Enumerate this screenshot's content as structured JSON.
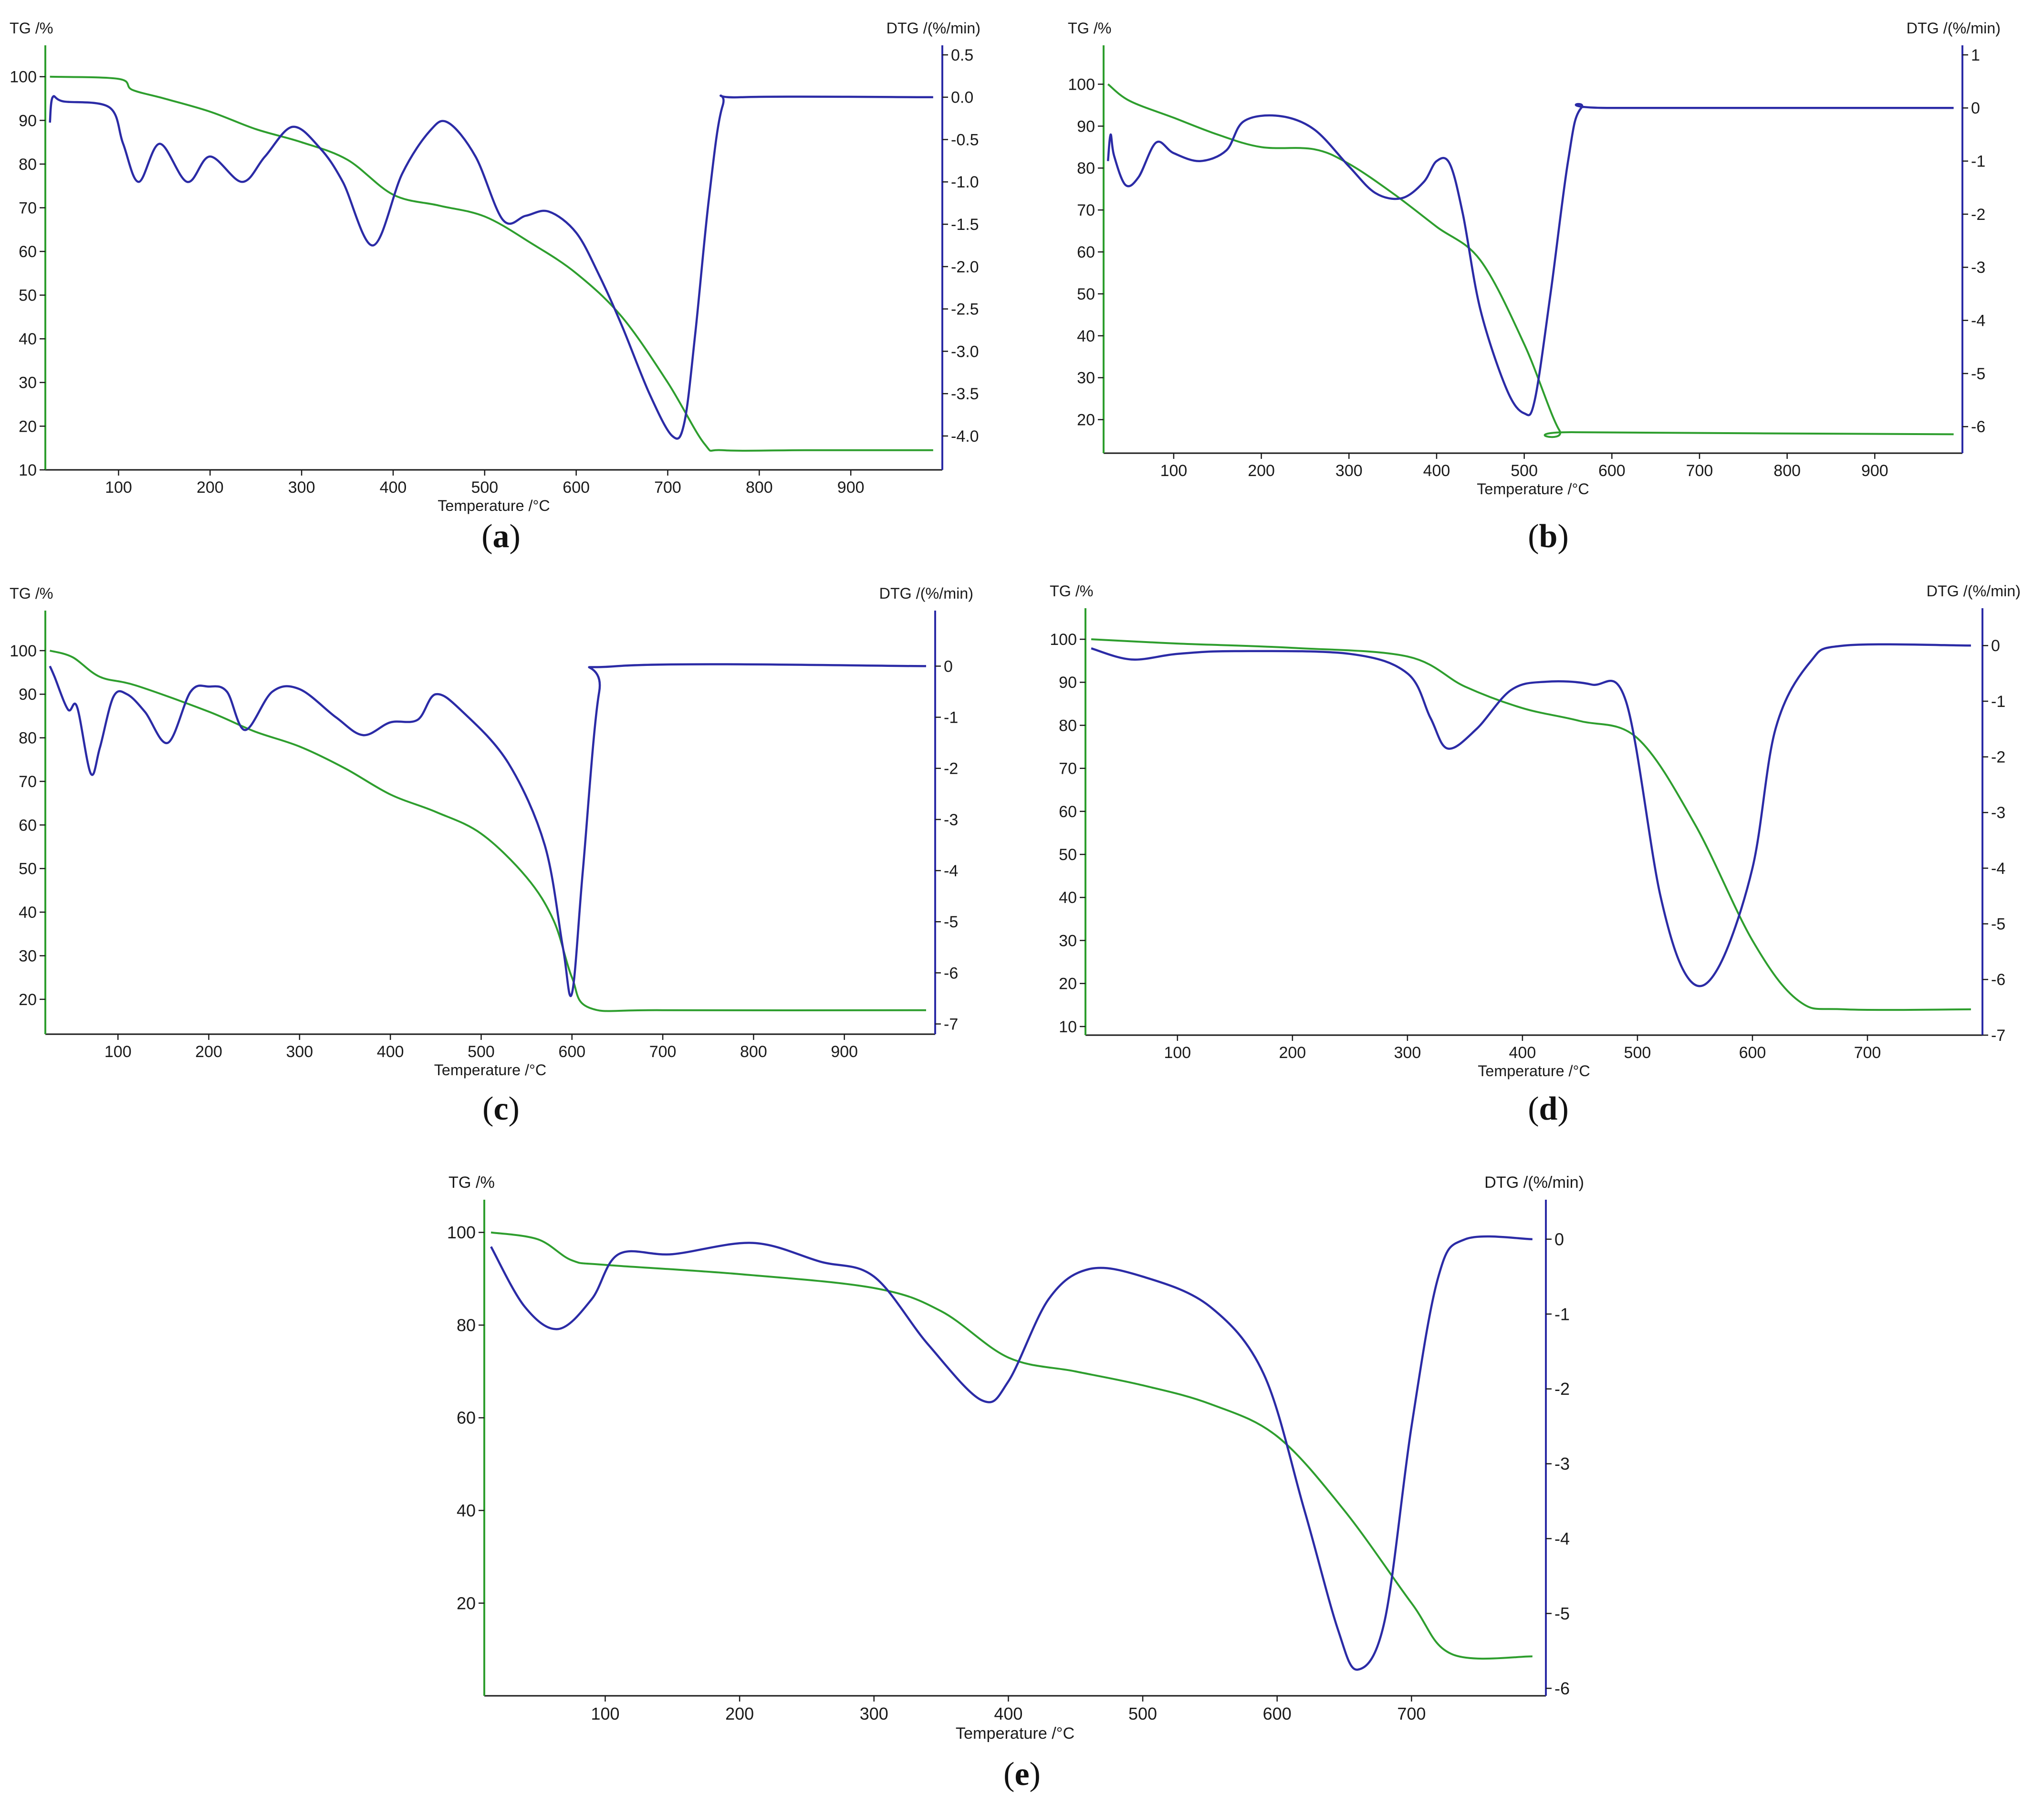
{
  "chart_data": [
    {
      "type": "line",
      "panel": "(a)",
      "tg_label": "TG /%",
      "dtg_label": "DTG /(%/min)",
      "xlabel": "Temperature /°C",
      "xlim": [
        20,
        1000
      ],
      "tg_ylim": [
        10,
        105
      ],
      "dtg_ylim": [
        -4.4,
        0.5
      ],
      "x_ticks": [
        100,
        200,
        300,
        400,
        500,
        600,
        700,
        800,
        900
      ],
      "tg_ticks": [
        10,
        20,
        30,
        40,
        50,
        60,
        70,
        80,
        90,
        100
      ],
      "dtg_ticks": [
        "0.5",
        "0.0",
        "-0.5",
        "-1.0",
        "-1.5",
        "-2.0",
        "-2.5",
        "-3.0",
        "-3.5",
        "-4.0"
      ],
      "series": [
        {
          "name": "TG",
          "color": "#2e9e2e",
          "axis": "tg",
          "points": [
            [
              25,
              100
            ],
            [
              100,
              99.5
            ],
            [
              115,
              97
            ],
            [
              150,
              95
            ],
            [
              200,
              92
            ],
            [
              250,
              88
            ],
            [
              300,
              85
            ],
            [
              350,
              81
            ],
            [
              400,
              73
            ],
            [
              450,
              70.5
            ],
            [
              500,
              68
            ],
            [
              550,
              62
            ],
            [
              600,
              55
            ],
            [
              650,
              45
            ],
            [
              700,
              30
            ],
            [
              740,
              16
            ],
            [
              760,
              14.5
            ],
            [
              850,
              14.5
            ],
            [
              990,
              14.5
            ]
          ]
        },
        {
          "name": "DTG",
          "color": "#2b2ba6",
          "axis": "dtg",
          "points": [
            [
              25,
              -0.3
            ],
            [
              28,
              0.0
            ],
            [
              40,
              -0.05
            ],
            [
              90,
              -0.12
            ],
            [
              105,
              -0.55
            ],
            [
              122,
              -1.0
            ],
            [
              145,
              -0.55
            ],
            [
              175,
              -1.0
            ],
            [
              200,
              -0.7
            ],
            [
              235,
              -1.0
            ],
            [
              260,
              -0.7
            ],
            [
              290,
              -0.35
            ],
            [
              320,
              -0.6
            ],
            [
              345,
              -1.0
            ],
            [
              378,
              -1.75
            ],
            [
              410,
              -0.9
            ],
            [
              440,
              -0.4
            ],
            [
              460,
              -0.3
            ],
            [
              490,
              -0.7
            ],
            [
              520,
              -1.45
            ],
            [
              545,
              -1.4
            ],
            [
              570,
              -1.35
            ],
            [
              600,
              -1.6
            ],
            [
              625,
              -2.1
            ],
            [
              650,
              -2.7
            ],
            [
              680,
              -3.5
            ],
            [
              705,
              -4.0
            ],
            [
              718,
              -3.85
            ],
            [
              730,
              -2.8
            ],
            [
              745,
              -1.2
            ],
            [
              760,
              -0.1
            ],
            [
              780,
              0.0
            ],
            [
              990,
              0.0
            ]
          ]
        }
      ]
    },
    {
      "type": "line",
      "panel": "(b)",
      "tg_label": "TG /%",
      "dtg_label": "DTG /(%/min)",
      "xlabel": "Temperature /°C",
      "xlim": [
        20,
        1000
      ],
      "tg_ylim": [
        12,
        107
      ],
      "dtg_ylim": [
        -6.5,
        1
      ],
      "x_ticks": [
        100,
        200,
        300,
        400,
        500,
        600,
        700,
        800,
        900
      ],
      "tg_ticks": [
        20,
        30,
        40,
        50,
        60,
        70,
        80,
        90,
        100
      ],
      "dtg_ticks": [
        "1",
        "0",
        "-1",
        "-2",
        "-3",
        "-4",
        "-5",
        "-6"
      ],
      "series": [
        {
          "name": "TG",
          "color": "#2e9e2e",
          "axis": "tg",
          "points": [
            [
              25,
              100
            ],
            [
              50,
              96
            ],
            [
              100,
              92
            ],
            [
              150,
              88
            ],
            [
              200,
              85
            ],
            [
              260,
              84.5
            ],
            [
              300,
              81
            ],
            [
              350,
              74
            ],
            [
              400,
              66
            ],
            [
              450,
              58
            ],
            [
              500,
              38
            ],
            [
              540,
              17.5
            ],
            [
              560,
              17
            ],
            [
              990,
              16.5
            ]
          ]
        },
        {
          "name": "DTG",
          "color": "#2b2ba6",
          "axis": "dtg",
          "points": [
            [
              25,
              -1
            ],
            [
              28,
              -0.5
            ],
            [
              32,
              -0.9
            ],
            [
              45,
              -1.45
            ],
            [
              60,
              -1.3
            ],
            [
              80,
              -0.65
            ],
            [
              100,
              -0.85
            ],
            [
              130,
              -1.0
            ],
            [
              160,
              -0.8
            ],
            [
              180,
              -0.25
            ],
            [
              220,
              -0.15
            ],
            [
              260,
              -0.4
            ],
            [
              300,
              -1.1
            ],
            [
              330,
              -1.6
            ],
            [
              360,
              -1.7
            ],
            [
              385,
              -1.4
            ],
            [
              400,
              -1.0
            ],
            [
              415,
              -1.05
            ],
            [
              430,
              -2.0
            ],
            [
              450,
              -3.8
            ],
            [
              480,
              -5.3
            ],
            [
              500,
              -5.75
            ],
            [
              512,
              -5.5
            ],
            [
              530,
              -3.5
            ],
            [
              550,
              -1.0
            ],
            [
              565,
              0.0
            ],
            [
              600,
              0.0
            ],
            [
              990,
              0.0
            ]
          ]
        }
      ]
    },
    {
      "type": "line",
      "panel": "(c)",
      "tg_label": "TG /%",
      "dtg_label": "DTG /(%/min)",
      "xlabel": "Temperature /°C",
      "xlim": [
        20,
        1000
      ],
      "tg_ylim": [
        12,
        107
      ],
      "dtg_ylim": [
        -7.2,
        0.9
      ],
      "x_ticks": [
        100,
        200,
        300,
        400,
        500,
        600,
        700,
        800,
        900
      ],
      "tg_ticks": [
        20,
        30,
        40,
        50,
        60,
        70,
        80,
        90,
        100
      ],
      "dtg_ticks": [
        "0",
        "-1",
        "-2",
        "-3",
        "-4",
        "-5",
        "-6",
        "-7"
      ],
      "series": [
        {
          "name": "TG",
          "color": "#2e9e2e",
          "axis": "tg",
          "points": [
            [
              25,
              100
            ],
            [
              50,
              98.5
            ],
            [
              80,
              94
            ],
            [
              120,
              92
            ],
            [
              200,
              86
            ],
            [
              250,
              81.5
            ],
            [
              300,
              78
            ],
            [
              350,
              73
            ],
            [
              400,
              67
            ],
            [
              450,
              63
            ],
            [
              500,
              58
            ],
            [
              550,
              48
            ],
            [
              580,
              38
            ],
            [
              600,
              25
            ],
            [
              620,
              18
            ],
            [
              700,
              17.5
            ],
            [
              990,
              17.5
            ]
          ]
        },
        {
          "name": "DTG",
          "color": "#2b2ba6",
          "axis": "dtg",
          "points": [
            [
              25,
              0.0
            ],
            [
              30,
              -0.2
            ],
            [
              45,
              -0.85
            ],
            [
              55,
              -0.8
            ],
            [
              70,
              -2.1
            ],
            [
              80,
              -1.6
            ],
            [
              95,
              -0.6
            ],
            [
              110,
              -0.55
            ],
            [
              130,
              -0.9
            ],
            [
              155,
              -1.5
            ],
            [
              180,
              -0.5
            ],
            [
              200,
              -0.4
            ],
            [
              220,
              -0.5
            ],
            [
              240,
              -1.25
            ],
            [
              270,
              -0.5
            ],
            [
              300,
              -0.45
            ],
            [
              340,
              -1.0
            ],
            [
              370,
              -1.35
            ],
            [
              400,
              -1.1
            ],
            [
              430,
              -1.05
            ],
            [
              450,
              -0.55
            ],
            [
              480,
              -0.9
            ],
            [
              530,
              -1.9
            ],
            [
              570,
              -3.5
            ],
            [
              590,
              -5.5
            ],
            [
              600,
              -6.4
            ],
            [
              612,
              -4.0
            ],
            [
              630,
              -0.5
            ],
            [
              650,
              0.0
            ],
            [
              990,
              0.0
            ]
          ]
        }
      ]
    },
    {
      "type": "line",
      "panel": "(d)",
      "tg_label": "TG /%",
      "dtg_label": "DTG /(%/min)",
      "xlabel": "Temperature /°C",
      "xlim": [
        20,
        800
      ],
      "tg_ylim": [
        8,
        105
      ],
      "dtg_ylim": [
        -7,
        0.5
      ],
      "x_ticks": [
        100,
        200,
        300,
        400,
        500,
        600,
        700
      ],
      "tg_ticks": [
        10,
        20,
        30,
        40,
        50,
        60,
        70,
        80,
        90,
        100
      ],
      "dtg_ticks": [
        "0",
        "-1",
        "-2",
        "-3",
        "-4",
        "-5",
        "-6",
        "-7"
      ],
      "series": [
        {
          "name": "TG",
          "color": "#2e9e2e",
          "axis": "tg",
          "points": [
            [
              25,
              100
            ],
            [
              100,
              99
            ],
            [
              200,
              98
            ],
            [
              300,
              96
            ],
            [
              350,
              89
            ],
            [
              400,
              84
            ],
            [
              450,
              81
            ],
            [
              500,
              77
            ],
            [
              550,
              57
            ],
            [
              600,
              30
            ],
            [
              640,
              16
            ],
            [
              680,
              14
            ],
            [
              790,
              14
            ]
          ]
        },
        {
          "name": "DTG",
          "color": "#2b2ba6",
          "axis": "dtg",
          "points": [
            [
              25,
              -0.05
            ],
            [
              60,
              -0.25
            ],
            [
              100,
              -0.15
            ],
            [
              150,
              -0.1
            ],
            [
              250,
              -0.15
            ],
            [
              300,
              -0.5
            ],
            [
              320,
              -1.3
            ],
            [
              335,
              -1.85
            ],
            [
              360,
              -1.5
            ],
            [
              390,
              -0.8
            ],
            [
              420,
              -0.65
            ],
            [
              460,
              -0.7
            ],
            [
              490,
              -1.0
            ],
            [
              520,
              -4.5
            ],
            [
              545,
              -6.0
            ],
            [
              570,
              -5.8
            ],
            [
              600,
              -4.0
            ],
            [
              620,
              -1.5
            ],
            [
              650,
              -0.3
            ],
            [
              680,
              0.0
            ],
            [
              790,
              0.0
            ]
          ]
        }
      ]
    },
    {
      "type": "line",
      "panel": "(e)",
      "tg_label": "TG /%",
      "dtg_label": "DTG /(%/min)",
      "xlabel": "Temperature /°C",
      "xlim": [
        10,
        800
      ],
      "tg_ylim": [
        0,
        105
      ],
      "dtg_ylim": [
        -6.1,
        0.4
      ],
      "x_ticks": [
        100,
        200,
        300,
        400,
        500,
        600,
        700
      ],
      "tg_ticks": [
        20,
        40,
        60,
        80,
        100
      ],
      "dtg_ticks": [
        "0",
        "-1",
        "-2",
        "-3",
        "-4",
        "-5",
        "-6"
      ],
      "series": [
        {
          "name": "TG",
          "color": "#2e9e2e",
          "axis": "tg",
          "points": [
            [
              15,
              100
            ],
            [
              50,
              98.5
            ],
            [
              75,
              94
            ],
            [
              100,
              93
            ],
            [
              200,
              91
            ],
            [
              300,
              88
            ],
            [
              350,
              83
            ],
            [
              400,
              73
            ],
            [
              450,
              70
            ],
            [
              500,
              67
            ],
            [
              550,
              63
            ],
            [
              600,
              56
            ],
            [
              650,
              40
            ],
            [
              700,
              20
            ],
            [
              730,
              9
            ],
            [
              790,
              8.5
            ]
          ]
        },
        {
          "name": "DTG",
          "color": "#2b2ba6",
          "axis": "dtg",
          "points": [
            [
              15,
              -0.1
            ],
            [
              40,
              -0.9
            ],
            [
              65,
              -1.2
            ],
            [
              90,
              -0.8
            ],
            [
              110,
              -0.2
            ],
            [
              150,
              -0.2
            ],
            [
              210,
              -0.05
            ],
            [
              260,
              -0.3
            ],
            [
              300,
              -0.5
            ],
            [
              340,
              -1.4
            ],
            [
              380,
              -2.15
            ],
            [
              400,
              -1.9
            ],
            [
              430,
              -0.8
            ],
            [
              460,
              -0.4
            ],
            [
              500,
              -0.5
            ],
            [
              550,
              -0.9
            ],
            [
              590,
              -1.8
            ],
            [
              620,
              -3.6
            ],
            [
              645,
              -5.2
            ],
            [
              660,
              -5.75
            ],
            [
              680,
              -5.1
            ],
            [
              700,
              -2.5
            ],
            [
              720,
              -0.5
            ],
            [
              740,
              0.0
            ],
            [
              790,
              0.0
            ]
          ]
        }
      ]
    }
  ],
  "captions": [
    "a",
    "b",
    "c",
    "d",
    "e"
  ]
}
